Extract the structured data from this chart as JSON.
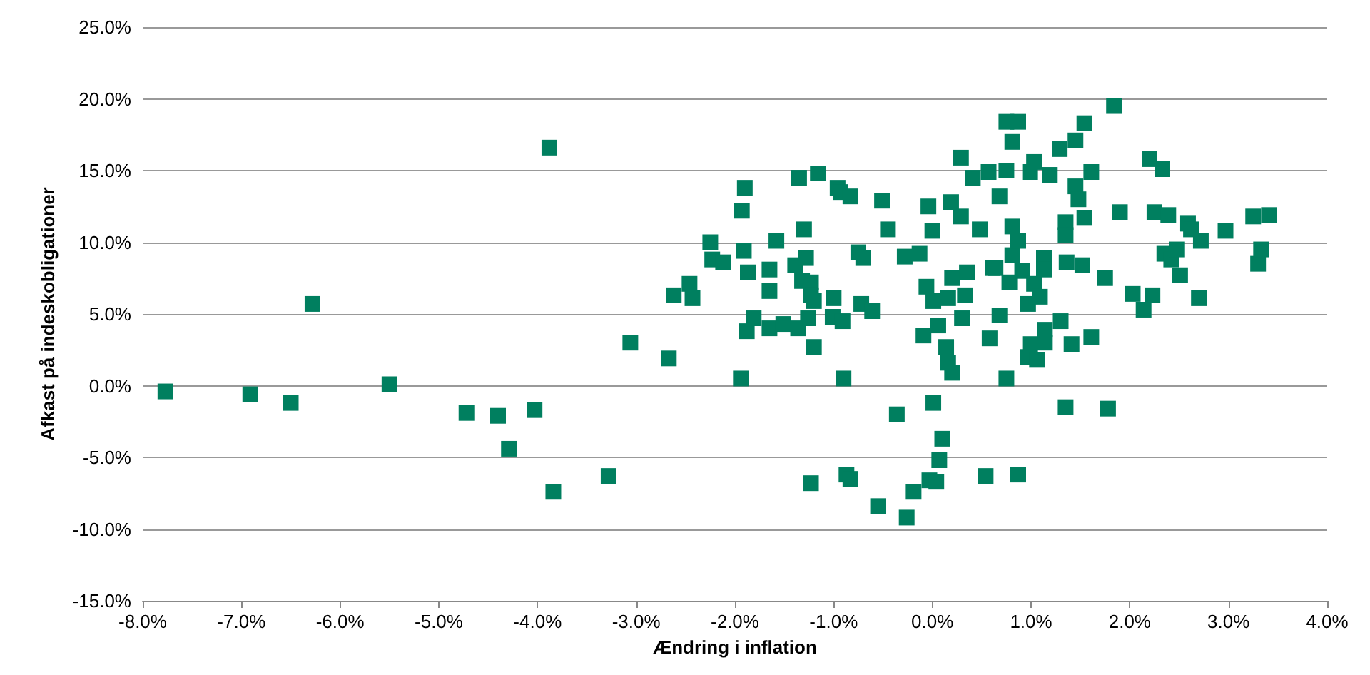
{
  "chart_data": {
    "type": "scatter",
    "xlabel": "Ændring i inflation",
    "ylabel": "Afkast på indeskobligationer",
    "marker": "square",
    "grid": "y",
    "xlim": [
      -8,
      4
    ],
    "ylim": [
      -15,
      25
    ],
    "xticks": [
      {
        "value": -8,
        "label": "-8.0%"
      },
      {
        "value": -7,
        "label": "-7.0%"
      },
      {
        "value": -6,
        "label": "-6.0%"
      },
      {
        "value": -5,
        "label": "-5.0%"
      },
      {
        "value": -4,
        "label": "-4.0%"
      },
      {
        "value": -3,
        "label": "-3.0%"
      },
      {
        "value": -2,
        "label": "-2.0%"
      },
      {
        "value": -1,
        "label": "-1.0%"
      },
      {
        "value": 0,
        "label": "0.0%"
      },
      {
        "value": 1,
        "label": "1.0%"
      },
      {
        "value": 2,
        "label": "2.0%"
      },
      {
        "value": 3,
        "label": "3.0%"
      },
      {
        "value": 4,
        "label": "4.0%"
      }
    ],
    "yticks": [
      {
        "value": -15,
        "label": "-15.0%"
      },
      {
        "value": -10,
        "label": "-10.0%"
      },
      {
        "value": -5,
        "label": "-5.0%"
      },
      {
        "value": 0,
        "label": "0.0%"
      },
      {
        "value": 5,
        "label": "5.0%"
      },
      {
        "value": 10,
        "label": "10.0%"
      },
      {
        "value": 15,
        "label": "15.0%"
      },
      {
        "value": 20,
        "label": "20.0%"
      },
      {
        "value": 25,
        "label": "25.0%"
      }
    ],
    "series": [
      {
        "color": "#007f5f",
        "x": [
          -7.77,
          -6.91,
          -6.5,
          -6.28,
          -5.5,
          -4.72,
          -4.4,
          -4.29,
          -4.03,
          -3.88,
          -3.84,
          -3.28,
          -3.06,
          -2.67,
          -2.62,
          -2.46,
          -2.43,
          -2.25,
          -2.23,
          -2.12,
          -1.94,
          -1.93,
          -1.91,
          -1.9,
          -1.88,
          -1.87,
          -1.81,
          -1.65,
          -1.65,
          -1.65,
          -1.58,
          -1.51,
          -1.39,
          -1.36,
          -1.35,
          -1.32,
          -1.3,
          -1.28,
          -1.26,
          -1.23,
          -1.23,
          -1.23,
          -1.2,
          -1.2,
          -1.16,
          -1.01,
          -1.0,
          -0.96,
          -0.93,
          -0.91,
          -0.9,
          -0.87,
          -0.83,
          -0.83,
          -0.75,
          -0.72,
          -0.7,
          -0.61,
          -0.55,
          -0.51,
          -0.45,
          -0.36,
          -0.28,
          -0.26,
          -0.19,
          -0.13,
          -0.09,
          -0.06,
          -0.04,
          -0.03,
          0.0,
          0.01,
          0.01,
          0.04,
          0.06,
          0.07,
          0.1,
          0.14,
          0.16,
          0.16,
          0.19,
          0.2,
          0.2,
          0.29,
          0.29,
          0.3,
          0.33,
          0.35,
          0.41,
          0.48,
          0.54,
          0.57,
          0.58,
          0.61,
          0.64,
          0.68,
          0.68,
          0.75,
          0.75,
          0.75,
          0.78,
          0.81,
          0.81,
          0.81,
          0.87,
          0.87,
          0.87,
          0.91,
          0.97,
          0.97,
          0.99,
          0.99,
          1.03,
          1.03,
          1.06,
          1.09,
          1.13,
          1.13,
          1.14,
          1.14,
          1.19,
          1.29,
          1.3,
          1.35,
          1.35,
          1.35,
          1.36,
          1.41,
          1.45,
          1.45,
          1.48,
          1.52,
          1.54,
          1.54,
          1.61,
          1.61,
          1.75,
          1.78,
          1.84,
          1.9,
          2.03,
          2.14,
          2.2,
          2.23,
          2.25,
          2.33,
          2.35,
          2.39,
          2.42,
          2.48,
          2.51,
          2.59,
          2.62,
          2.7,
          2.72,
          2.97,
          3.25,
          3.3,
          3.33,
          3.41
        ],
        "values": [
          -0.4,
          -0.6,
          -1.2,
          5.7,
          0.1,
          -1.9,
          -2.1,
          -4.4,
          -1.7,
          16.6,
          -7.4,
          -6.3,
          3.0,
          1.9,
          6.3,
          7.1,
          6.1,
          10.0,
          8.8,
          8.6,
          0.5,
          12.2,
          9.4,
          13.8,
          3.8,
          7.9,
          4.7,
          8.1,
          6.6,
          4.0,
          10.1,
          4.3,
          8.4,
          4.0,
          14.5,
          7.3,
          10.9,
          8.9,
          4.7,
          7.2,
          6.3,
          -6.8,
          5.9,
          2.7,
          14.8,
          4.8,
          6.1,
          13.8,
          13.5,
          4.5,
          0.5,
          -6.2,
          -6.5,
          13.2,
          9.3,
          5.7,
          8.9,
          5.2,
          -8.4,
          12.9,
          10.9,
          -2.0,
          9.0,
          -9.2,
          -7.4,
          9.2,
          3.5,
          6.9,
          12.5,
          -6.6,
          10.8,
          5.9,
          -1.2,
          -6.7,
          4.2,
          -5.2,
          -3.7,
          2.7,
          1.6,
          6.1,
          12.8,
          7.5,
          0.9,
          15.9,
          11.8,
          4.7,
          6.3,
          7.9,
          14.5,
          10.9,
          -6.3,
          14.9,
          3.3,
          8.2,
          8.2,
          13.2,
          4.9,
          18.4,
          15.0,
          0.5,
          7.2,
          17.0,
          11.1,
          9.1,
          18.4,
          10.1,
          -6.2,
          8.0,
          5.7,
          2.0,
          14.9,
          2.9,
          15.6,
          7.1,
          1.8,
          6.2,
          8.9,
          8.1,
          3.9,
          3.0,
          14.7,
          16.5,
          4.5,
          11.4,
          10.5,
          -1.5,
          8.6,
          2.9,
          17.1,
          13.9,
          13.0,
          8.4,
          18.3,
          11.7,
          14.9,
          3.4,
          7.5,
          -1.6,
          19.5,
          12.1,
          6.4,
          5.3,
          15.8,
          6.3,
          12.1,
          15.1,
          9.2,
          11.9,
          8.8,
          9.5,
          7.7,
          11.3,
          10.9,
          6.1,
          10.1,
          10.8,
          11.8,
          8.5,
          9.5,
          11.9
        ]
      }
    ]
  }
}
